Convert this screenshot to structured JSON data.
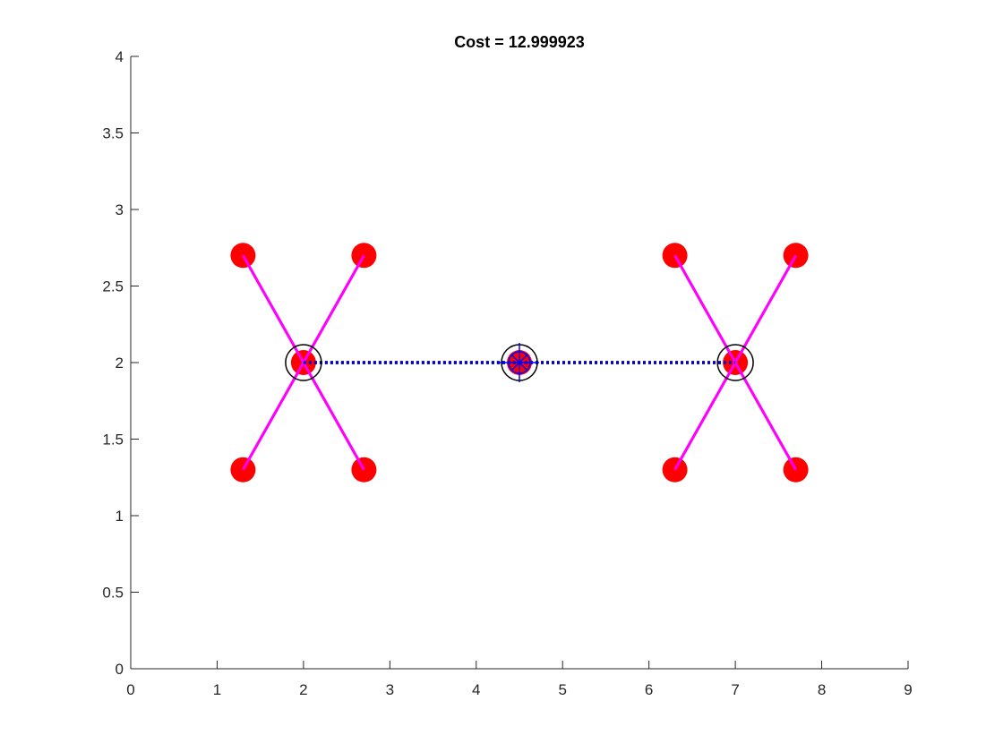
{
  "chart_data": {
    "type": "scatter",
    "title": "Cost = 12.999923",
    "xlabel": "",
    "ylabel": "",
    "xlim": [
      0,
      9
    ],
    "ylim": [
      0,
      4
    ],
    "xticks": [
      "0",
      "1",
      "2",
      "3",
      "4",
      "5",
      "6",
      "7",
      "8",
      "9"
    ],
    "yticks": [
      "0",
      "0.5",
      "1",
      "1.5",
      "2",
      "2.5",
      "3",
      "3.5",
      "4"
    ],
    "grid": false,
    "legend": "none",
    "terminals": {
      "color": "#ff0000",
      "points": [
        {
          "x": 1.3,
          "y": 2.7
        },
        {
          "x": 2.7,
          "y": 2.7
        },
        {
          "x": 1.3,
          "y": 1.3
        },
        {
          "x": 2.7,
          "y": 1.3
        },
        {
          "x": 6.3,
          "y": 2.7
        },
        {
          "x": 7.7,
          "y": 2.7
        },
        {
          "x": 6.3,
          "y": 1.3
        },
        {
          "x": 7.7,
          "y": 1.3
        },
        {
          "x": 2.0,
          "y": 2.0
        },
        {
          "x": 4.5,
          "y": 2.0
        },
        {
          "x": 7.0,
          "y": 2.0
        }
      ]
    },
    "hubs": {
      "color": "#000000",
      "points": [
        {
          "x": 2.0,
          "y": 2.0
        },
        {
          "x": 4.5,
          "y": 2.0
        },
        {
          "x": 7.0,
          "y": 2.0
        }
      ]
    },
    "center": {
      "x": 4.5,
      "y": 2.0,
      "color": "#0000ff"
    },
    "spokes": {
      "color": "#ff00ff",
      "segments": [
        {
          "x1": 1.3,
          "y1": 2.7,
          "x2": 2.7,
          "y2": 1.3
        },
        {
          "x1": 2.7,
          "y1": 2.7,
          "x2": 1.3,
          "y2": 1.3
        },
        {
          "x1": 6.3,
          "y1": 2.7,
          "x2": 7.7,
          "y2": 1.3
        },
        {
          "x1": 7.7,
          "y1": 2.7,
          "x2": 6.3,
          "y2": 1.3
        }
      ]
    },
    "backbone": {
      "color": "#0000cc",
      "style": "dotted",
      "segments": [
        {
          "x1": 2.0,
          "y1": 2.0,
          "x2": 4.5,
          "y2": 2.0
        },
        {
          "x1": 4.5,
          "y1": 2.0,
          "x2": 7.0,
          "y2": 2.0
        }
      ]
    }
  }
}
